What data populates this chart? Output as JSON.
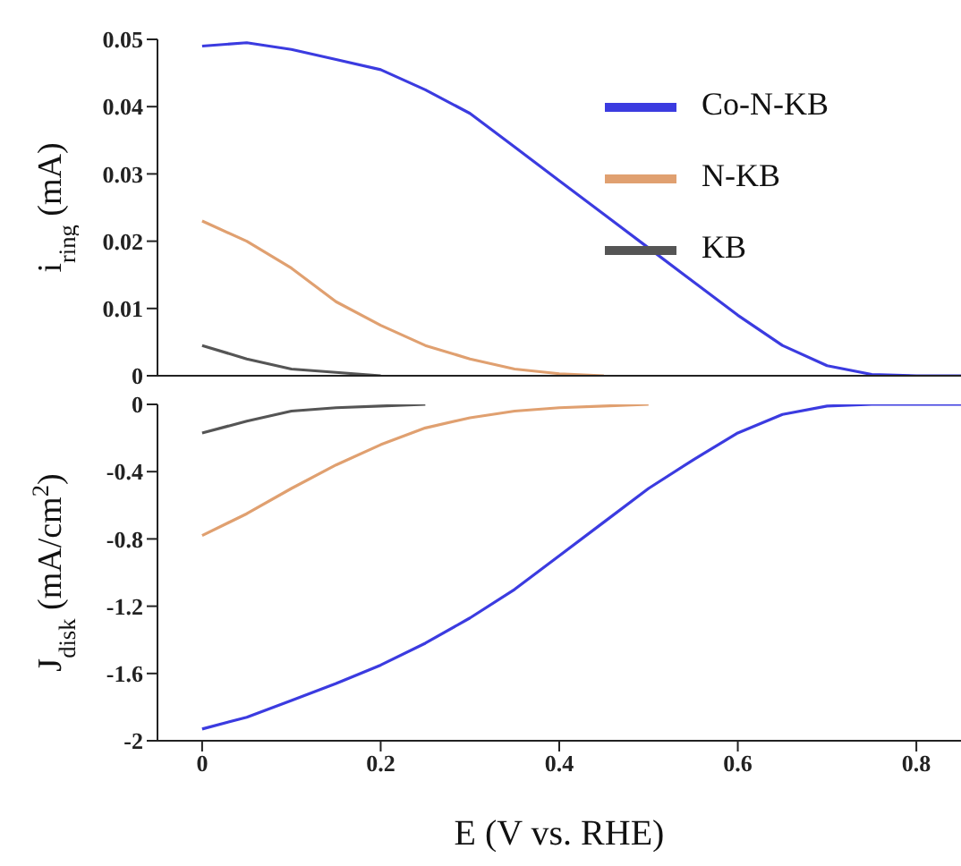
{
  "chart_data": [
    {
      "type": "line",
      "ylabel": "i$_{ring}$ (mA)",
      "x": [
        0,
        0.05,
        0.1,
        0.15,
        0.2,
        0.25,
        0.3,
        0.35,
        0.4,
        0.45,
        0.5,
        0.55,
        0.6,
        0.65,
        0.7,
        0.75,
        0.8,
        0.85
      ],
      "series": [
        {
          "name": "Co-N-KB",
          "color": "#3b3be0",
          "values": [
            0.049,
            0.0495,
            0.0485,
            0.047,
            0.0455,
            0.0425,
            0.039,
            0.034,
            0.029,
            0.024,
            0.019,
            0.014,
            0.009,
            0.0045,
            0.0015,
            0.0002,
            0,
            0
          ]
        },
        {
          "name": "N-KB",
          "color": "#e0a070",
          "values": [
            0.023,
            0.02,
            0.016,
            0.011,
            0.0075,
            0.0045,
            0.0025,
            0.001,
            0.0003,
            0,
            null,
            null,
            null,
            null,
            null,
            null,
            null,
            null
          ]
        },
        {
          "name": "KB",
          "color": "#555555",
          "values": [
            0.0045,
            0.0025,
            0.001,
            0.0005,
            0,
            null,
            null,
            null,
            null,
            null,
            null,
            null,
            null,
            null,
            null,
            null,
            null,
            null
          ]
        }
      ],
      "xlim": [
        -0.05,
        0.85
      ],
      "xticks": [
        0,
        0.2,
        0.4,
        0.6,
        0.8
      ],
      "ylim": [
        0,
        0.05
      ],
      "yticks": [
        0,
        0.01,
        0.02,
        0.03,
        0.04,
        0.05
      ],
      "tick_labels": "y",
      "legend": "top right"
    },
    {
      "type": "line",
      "xlabel": "E (V vs. RHE)",
      "ylabel": "J$_{disk}$ (mA/cm$^{2}$)",
      "x": [
        0,
        0.05,
        0.1,
        0.15,
        0.2,
        0.25,
        0.3,
        0.35,
        0.4,
        0.45,
        0.5,
        0.55,
        0.6,
        0.65,
        0.7,
        0.75,
        0.8,
        0.85
      ],
      "series": [
        {
          "color": "#3b3be0",
          "values": [
            -1.93,
            -1.86,
            -1.76,
            -1.66,
            -1.55,
            -1.42,
            -1.27,
            -1.1,
            -0.9,
            -0.7,
            -0.5,
            -0.33,
            -0.17,
            -0.06,
            -0.01,
            0,
            0,
            0
          ]
        },
        {
          "color": "#e0a070",
          "values": [
            -0.78,
            -0.65,
            -0.5,
            -0.36,
            -0.24,
            -0.14,
            -0.08,
            -0.04,
            -0.02,
            -0.01,
            0,
            null,
            null,
            null,
            null,
            null,
            null,
            null
          ]
        },
        {
          "color": "#555555",
          "values": [
            -0.17,
            -0.1,
            -0.04,
            -0.02,
            -0.01,
            0,
            null,
            null,
            null,
            null,
            null,
            null,
            null,
            null,
            null,
            null,
            null,
            null
          ]
        }
      ],
      "xlim": [
        -0.05,
        0.85
      ],
      "xticks": [
        0,
        0.2,
        0.4,
        0.6,
        0.8
      ],
      "ylim": [
        -2,
        0
      ],
      "yticks": [
        0,
        -0.4,
        -0.8,
        -1.2,
        -1.6,
        -2
      ],
      "legend": false
    }
  ]
}
